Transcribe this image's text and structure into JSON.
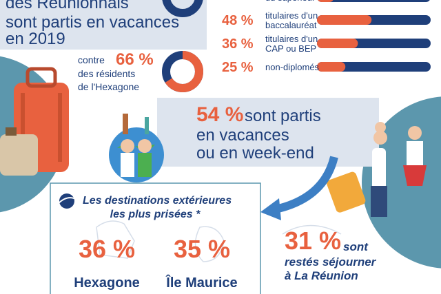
{
  "header": {
    "lines": [
      "des Réunionnais",
      "sont partis en vacances",
      "en 2019"
    ]
  },
  "diploma_rows": [
    {
      "text_lines": [
        "du supérieur"
      ]
    },
    {
      "value": 48,
      "label": "48 %",
      "text_lines": [
        "titulaires d'un",
        "baccalauréat"
      ]
    },
    {
      "value": 36,
      "label": "36 %",
      "text_lines": [
        "titulaires d'un",
        "CAP ou BEP"
      ]
    },
    {
      "value": 25,
      "label": "25 %",
      "text_lines": [
        "non-diplomés"
      ]
    }
  ],
  "comparison": {
    "prefix": "contre",
    "value": 66,
    "label": "66 %",
    "text_lines": [
      "des résidents",
      "de l'Hexagone"
    ]
  },
  "holidays": {
    "label": "54 %",
    "lines": [
      "sont partis",
      "en vacances",
      "ou en week-end"
    ]
  },
  "destinations": {
    "title_lines": [
      "Les destinations extérieures",
      "les plus prisées *"
    ],
    "items": [
      {
        "label": "36 %",
        "name": "Hexagone"
      },
      {
        "label": "35 %",
        "name": "Île Maurice"
      }
    ]
  },
  "stayed": {
    "label": "31 %",
    "lines": [
      "sont",
      "restés séjourner",
      "à La Réunion"
    ]
  }
}
